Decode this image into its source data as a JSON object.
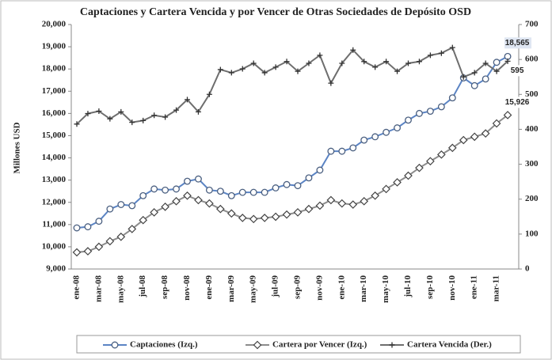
{
  "chart_data": {
    "type": "line",
    "title": "Captaciones y Cartera Vencida y por Vencer de Otras Sociedades de Depósito OSD",
    "ylabel": "Millones  USD",
    "categories": [
      "ene-08",
      null,
      "mar-08",
      null,
      "may-08",
      null,
      "jul-08",
      null,
      "sep-08",
      null,
      "nov-08",
      null,
      "ene-09",
      null,
      "mar-09",
      null,
      "may-09",
      null,
      "jul-09",
      null,
      "sep-09",
      null,
      "nov-09",
      null,
      "ene-10",
      null,
      "mar-10",
      null,
      "may-10",
      null,
      "jul-10",
      null,
      "sep-10",
      null,
      "nov-10",
      null,
      "ene-11",
      null,
      "mar-11",
      null
    ],
    "ylim": [
      9000,
      20000
    ],
    "yticks": [
      {
        "value": 9000,
        "label": "9,000"
      },
      {
        "value": 10000,
        "label": "10,000"
      },
      {
        "value": 11000,
        "label": "11,000"
      },
      {
        "value": 12000,
        "label": "12,000"
      },
      {
        "value": 13000,
        "label": "13,000"
      },
      {
        "value": 14000,
        "label": "14,000"
      },
      {
        "value": 15000,
        "label": "15,000"
      },
      {
        "value": 16000,
        "label": "16,000"
      },
      {
        "value": 17000,
        "label": "17,000"
      },
      {
        "value": 18000,
        "label": "18,000"
      },
      {
        "value": 19000,
        "label": "19,000"
      },
      {
        "value": 20000,
        "label": "20,000"
      }
    ],
    "y2lim": [
      0,
      700
    ],
    "y2ticks": [
      0,
      100,
      200,
      300,
      400,
      500,
      600,
      700
    ],
    "grid": false,
    "legend": "bottom",
    "series": [
      {
        "name": "Captaciones (Izq.)",
        "color": "#5b84c4",
        "marker": "circle",
        "values": [
          10850,
          10900,
          11150,
          11700,
          11900,
          11850,
          12300,
          12600,
          12550,
          12600,
          12950,
          13050,
          12550,
          12500,
          12300,
          12450,
          12450,
          12450,
          12650,
          12800,
          12750,
          13100,
          13450,
          14300,
          14300,
          14450,
          14800,
          14950,
          15150,
          15350,
          15700,
          16000,
          16100,
          16300,
          16700,
          17600,
          17250,
          17550,
          18300,
          18565
        ],
        "value_labels": [
          null,
          null,
          null,
          null,
          null,
          null,
          null,
          null,
          null,
          null,
          null,
          null,
          null,
          null,
          null,
          null,
          null,
          null,
          null,
          null,
          null,
          null,
          null,
          null,
          null,
          null,
          null,
          null,
          null,
          null,
          null,
          null,
          null,
          null,
          null,
          null,
          null,
          null,
          null,
          "18,565"
        ]
      },
      {
        "name": "Cartera por Vencer (Izq.)",
        "color": "#8c8c8c",
        "marker": "diamond",
        "values": [
          9750,
          9800,
          10000,
          10250,
          10450,
          10800,
          11200,
          11550,
          11800,
          12050,
          12300,
          12100,
          11950,
          11700,
          11500,
          11300,
          11250,
          11300,
          11350,
          11450,
          11550,
          11700,
          11850,
          12100,
          11950,
          11900,
          12050,
          12300,
          12600,
          12900,
          13200,
          13550,
          13850,
          14150,
          14450,
          14800,
          14950,
          15100,
          15550,
          15926
        ],
        "value_labels": [
          null,
          null,
          null,
          null,
          null,
          null,
          null,
          null,
          null,
          null,
          null,
          null,
          null,
          null,
          null,
          null,
          null,
          null,
          null,
          null,
          null,
          null,
          null,
          null,
          null,
          null,
          null,
          null,
          null,
          null,
          null,
          null,
          null,
          null,
          null,
          null,
          null,
          null,
          null,
          "15,926"
        ]
      },
      {
        "name": "Cartera Vencida (Der.)",
        "color": "#6e6e6e",
        "marker": "plus",
        "axis": "y2",
        "values": [
          415,
          445,
          452,
          430,
          450,
          420,
          425,
          440,
          435,
          455,
          485,
          450,
          500,
          571,
          562,
          573,
          589,
          562,
          578,
          594,
          566,
          589,
          612,
          532,
          589,
          627,
          594,
          578,
          594,
          566,
          589,
          594,
          612,
          618,
          634,
          550,
          562,
          589,
          566,
          595
        ],
        "value_labels": [
          null,
          null,
          null,
          null,
          null,
          null,
          null,
          null,
          null,
          null,
          null,
          null,
          null,
          null,
          null,
          null,
          null,
          null,
          null,
          null,
          null,
          null,
          null,
          null,
          null,
          null,
          null,
          null,
          null,
          null,
          null,
          null,
          null,
          null,
          null,
          null,
          null,
          null,
          null,
          "595"
        ]
      }
    ]
  }
}
